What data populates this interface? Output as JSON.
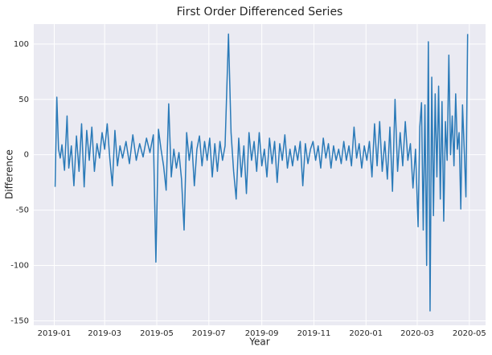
{
  "chart_data": {
    "type": "line",
    "title": "First Order Differenced Series",
    "x_label": "Year",
    "y_label": "Difference",
    "color": "#2a7ab8",
    "grid": true,
    "xlim": [
      -24,
      505
    ],
    "ylim": [
      -154,
      118
    ],
    "xticks": [
      {
        "value": 0,
        "label": "2019-01"
      },
      {
        "value": 59,
        "label": "2019-03"
      },
      {
        "value": 120,
        "label": "2019-05"
      },
      {
        "value": 181,
        "label": "2019-07"
      },
      {
        "value": 243,
        "label": "2019-09"
      },
      {
        "value": 304,
        "label": "2019-11"
      },
      {
        "value": 365,
        "label": "2020-01"
      },
      {
        "value": 425,
        "label": "2020-03"
      },
      {
        "value": 486,
        "label": "2020-05"
      }
    ],
    "yticks": [
      -150,
      -100,
      -50,
      0,
      50,
      100
    ],
    "x": [
      1,
      3,
      5,
      7,
      9,
      12,
      15,
      17,
      20,
      23,
      26,
      29,
      32,
      35,
      38,
      41,
      44,
      47,
      50,
      53,
      56,
      59,
      62,
      65,
      68,
      71,
      74,
      77,
      80,
      84,
      88,
      92,
      96,
      100,
      104,
      108,
      112,
      116,
      119,
      122,
      125,
      128,
      131,
      134,
      137,
      140,
      143,
      146,
      149,
      152,
      155,
      158,
      161,
      164,
      167,
      170,
      173,
      176,
      179,
      182,
      185,
      188,
      191,
      194,
      197,
      200,
      204,
      207,
      210,
      213,
      216,
      219,
      222,
      225,
      228,
      231,
      234,
      237,
      240,
      243,
      246,
      249,
      252,
      255,
      258,
      261,
      264,
      267,
      270,
      273,
      276,
      279,
      282,
      285,
      288,
      291,
      294,
      297,
      300,
      303,
      306,
      309,
      312,
      315,
      318,
      321,
      324,
      327,
      330,
      333,
      336,
      339,
      342,
      345,
      348,
      351,
      354,
      357,
      360,
      363,
      366,
      369,
      372,
      375,
      378,
      381,
      384,
      387,
      390,
      393,
      396,
      399,
      402,
      405,
      408,
      411,
      414,
      417,
      420,
      423,
      426,
      428,
      430,
      432,
      434,
      436,
      438,
      440,
      442,
      444,
      446,
      448,
      450,
      452,
      454,
      456,
      458,
      460,
      462,
      464,
      466,
      468,
      470,
      472,
      474,
      476,
      478,
      480,
      482,
      484
    ],
    "values": [
      -29,
      52,
      5,
      -3,
      9,
      -14,
      35,
      -12,
      8,
      -28,
      17,
      -15,
      28,
      -29,
      22,
      -5,
      25,
      -15,
      10,
      -3,
      20,
      5,
      28,
      -3,
      -28,
      22,
      -10,
      8,
      -3,
      12,
      -8,
      18,
      -5,
      10,
      -2,
      15,
      2,
      18,
      -97,
      23,
      5,
      -10,
      -32,
      46,
      -20,
      5,
      -12,
      2,
      -22,
      -68,
      20,
      -5,
      12,
      -28,
      5,
      17,
      -10,
      12,
      -5,
      15,
      -20,
      10,
      -15,
      12,
      -5,
      8,
      109,
      20,
      -15,
      -40,
      15,
      -20,
      8,
      -35,
      20,
      -5,
      12,
      -15,
      20,
      -10,
      5,
      -20,
      15,
      -8,
      12,
      -25,
      10,
      -5,
      18,
      -12,
      5,
      -10,
      8,
      -5,
      12,
      -28,
      10,
      -8,
      5,
      12,
      -5,
      8,
      -12,
      15,
      -3,
      10,
      -12,
      8,
      -5,
      5,
      -8,
      12,
      -5,
      8,
      -10,
      25,
      -3,
      10,
      -12,
      8,
      -5,
      12,
      -20,
      28,
      -10,
      30,
      -15,
      12,
      -22,
      25,
      -33,
      50,
      -15,
      20,
      -10,
      30,
      -5,
      10,
      -30,
      5,
      -65,
      25,
      47,
      -68,
      45,
      -100,
      102,
      -141,
      70,
      -55,
      55,
      -20,
      62,
      -40,
      48,
      -60,
      30,
      -5,
      90,
      0,
      35,
      -10,
      55,
      5,
      20,
      -49,
      45,
      5,
      -38,
      109
    ]
  }
}
